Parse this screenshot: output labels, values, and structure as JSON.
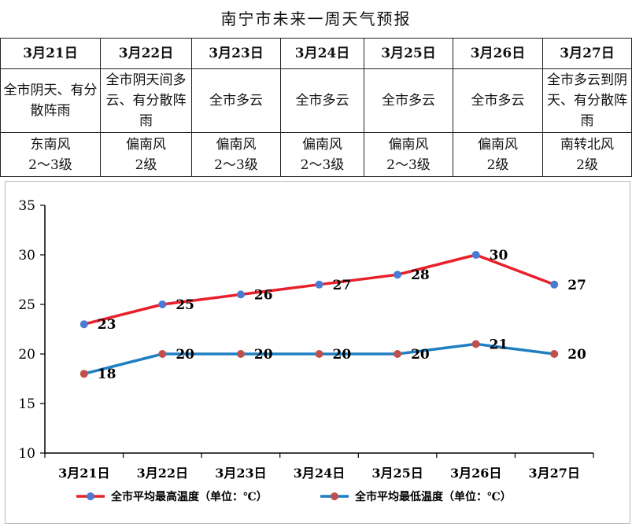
{
  "title": "南宁市未来一周天气预报",
  "forecast": {
    "days": [
      {
        "date": "3月21日",
        "weather": "全市阴天、有分散阵雨",
        "wind": "东南风",
        "level": "2～3级"
      },
      {
        "date": "3月22日",
        "weather": "全市阴天间多云、有分散阵雨",
        "wind": "偏南风",
        "level": "2级"
      },
      {
        "date": "3月23日",
        "weather": "全市多云",
        "wind": "偏南风",
        "level": "2～3级"
      },
      {
        "date": "3月24日",
        "weather": "全市多云",
        "wind": "偏南风",
        "level": "2～3级"
      },
      {
        "date": "3月25日",
        "weather": "全市多云",
        "wind": "偏南风",
        "level": "2～3级"
      },
      {
        "date": "3月26日",
        "weather": "全市多云",
        "wind": "偏南风",
        "level": "2级"
      },
      {
        "date": "3月27日",
        "weather": "全市多云到阴天、有分散阵雨",
        "wind": "南转北风",
        "level": "2级"
      }
    ]
  },
  "chart_data": {
    "type": "line",
    "categories": [
      "3月21日",
      "3月22日",
      "3月23日",
      "3月24日",
      "3月25日",
      "3月26日",
      "3月27日"
    ],
    "series": [
      {
        "name": "全市平均最高温度（单位：℃）",
        "values": [
          23,
          25,
          26,
          27,
          28,
          30,
          27
        ],
        "color": "#e8202a",
        "marker": "#4a7bd4"
      },
      {
        "name": "全市平均最低温度（单位：℃）",
        "values": [
          18,
          20,
          20,
          20,
          20,
          21,
          20
        ],
        "color": "#1f7fc1",
        "marker": "#c0504d"
      }
    ],
    "ylim": [
      10,
      35
    ],
    "yticks": [
      10,
      15,
      20,
      25,
      30,
      35
    ],
    "legend": "bottom",
    "grid": false
  }
}
